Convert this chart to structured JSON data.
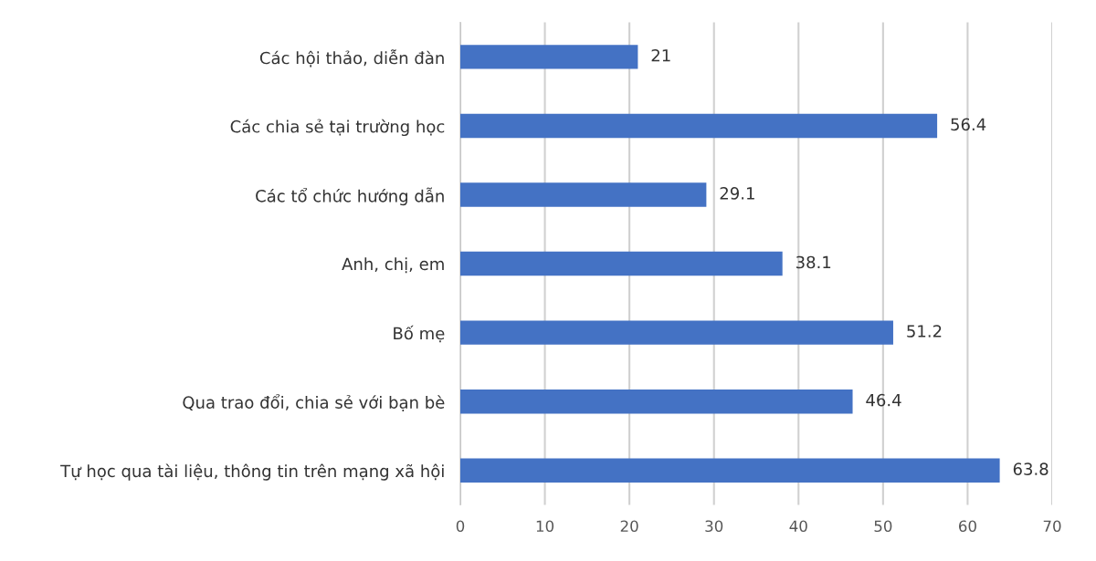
{
  "chart_data": {
    "type": "bar",
    "orientation": "horizontal",
    "categories": [
      "Các hội thảo, diễn đàn",
      "Các chia sẻ tại trường học",
      "Các tổ chức hướng dẫn",
      "Anh, chị, em",
      "Bố mẹ",
      "Qua trao đổi, chia sẻ với bạn bè",
      "Tự học qua tài liệu, thông tin trên mạng xã hội"
    ],
    "values": [
      21,
      56.4,
      29.1,
      38.1,
      51.2,
      46.4,
      63.8
    ],
    "color": "#4472c4",
    "xlim": [
      0,
      70
    ],
    "xticks": [
      0,
      10,
      20,
      30,
      40,
      50,
      60,
      70
    ],
    "grid": "x",
    "data_labels": true
  }
}
